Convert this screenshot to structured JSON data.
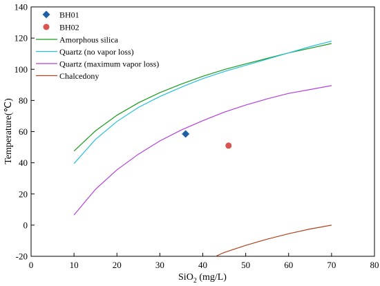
{
  "chart_data": {
    "type": "scatter",
    "xlabel_base": "SiO",
    "xlabel_sub": "2",
    "xlabel_unit": " (mg/L)",
    "ylabel": "Temperature(℃)",
    "xlim": [
      0,
      80
    ],
    "ylim": [
      -20,
      140
    ],
    "x_ticks": [
      "0",
      "10",
      "20",
      "30",
      "40",
      "50",
      "60",
      "70",
      "80"
    ],
    "y_ticks": [
      "-20",
      "0",
      "20",
      "40",
      "60",
      "80",
      "100",
      "120",
      "140"
    ],
    "grid": false,
    "legend_position": "top-left",
    "points": [
      {
        "name": "BH01",
        "x": 36,
        "y": 58.5,
        "color": "#1f5fa8",
        "marker": "diamond"
      },
      {
        "name": "BH02",
        "x": 46,
        "y": 51,
        "color": "#d9534f",
        "marker": "circle"
      }
    ],
    "curves": [
      {
        "name": "Amorphous silica",
        "color": "#1a9a1a",
        "x": [
          10,
          15,
          20,
          25,
          30,
          35,
          40,
          45,
          50,
          55,
          60,
          65,
          70
        ],
        "y": [
          47.5,
          60.5,
          70.5,
          78.5,
          85,
          90.5,
          95.5,
          99.8,
          103.5,
          107,
          110.5,
          113.5,
          116.5
        ]
      },
      {
        "name": "Quartz (no vapor loss)",
        "color": "#22c0dc",
        "x": [
          10,
          15,
          20,
          25,
          30,
          35,
          40,
          45,
          50,
          55,
          60,
          65,
          70
        ],
        "y": [
          39.5,
          55,
          66.5,
          75.5,
          82.5,
          88.5,
          94,
          98.5,
          102.5,
          106.5,
          110.5,
          114.5,
          118
        ]
      },
      {
        "name": "Quartz (maximum vapor loss)",
        "color": "#b23fe0",
        "x": [
          10,
          15,
          20,
          25,
          30,
          35,
          40,
          45,
          50,
          55,
          60,
          65,
          70
        ],
        "y": [
          6.5,
          23,
          35.5,
          45.5,
          54,
          61,
          67,
          72.5,
          77,
          81,
          84.5,
          87,
          89.5
        ]
      },
      {
        "name": "Chalcedony",
        "color": "#b2401e",
        "x": [
          43,
          45,
          50,
          55,
          60,
          65,
          70
        ],
        "y": [
          -20,
          -17.5,
          -13,
          -9,
          -5.5,
          -2.5,
          0
        ]
      }
    ]
  }
}
